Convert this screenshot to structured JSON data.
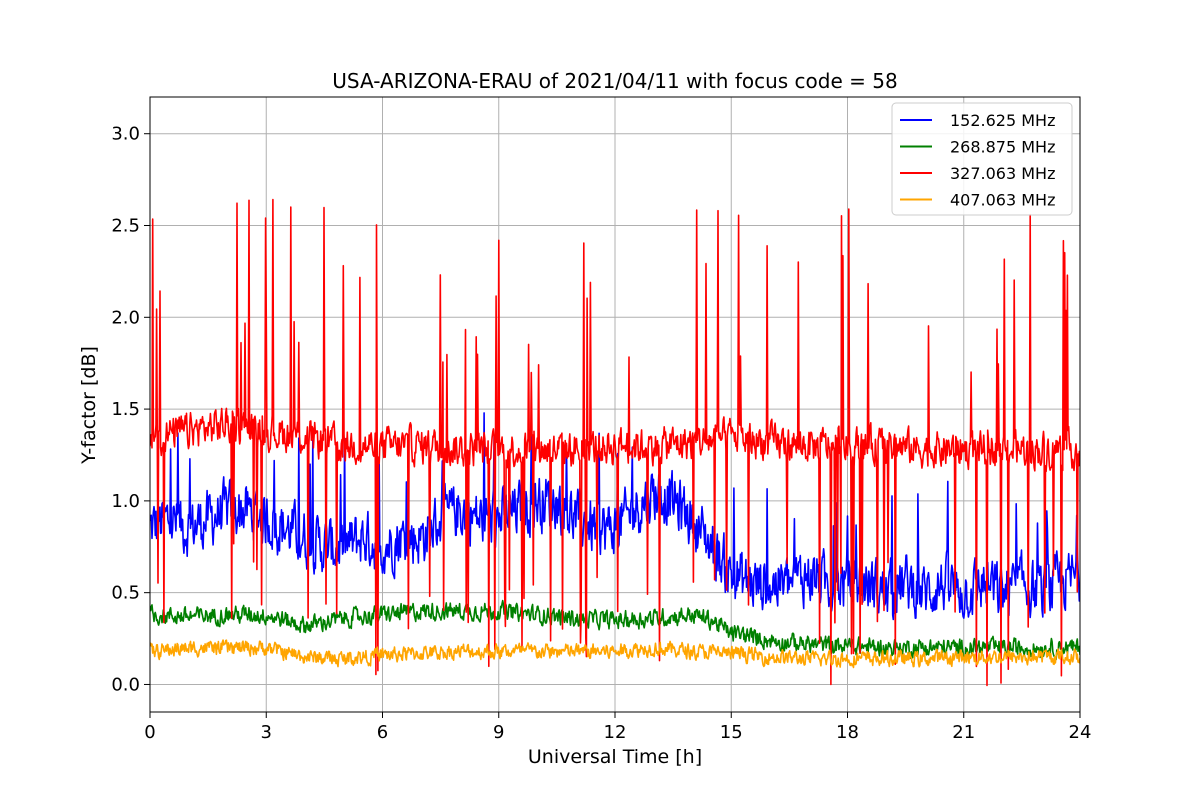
{
  "chart_data": {
    "type": "line",
    "title": "USA-ARIZONA-ERAU of 2021/04/11 with focus code = 58",
    "xlabel": "Universal Time [h]",
    "ylabel": "Y-factor [dB]",
    "xlim": [
      0,
      24
    ],
    "ylim": [
      -0.15,
      3.2
    ],
    "xticks": [
      0,
      3,
      6,
      9,
      12,
      15,
      18,
      21,
      24
    ],
    "yticks": [
      0.0,
      0.5,
      1.0,
      1.5,
      2.0,
      2.5,
      3.0
    ],
    "grid": true,
    "legend_position": "top-right",
    "series": [
      {
        "name": "152.625 MHz",
        "color": "#0000ff",
        "x": [
          0,
          0.5,
          1,
          1.5,
          2,
          2.5,
          3,
          3.5,
          4,
          4.5,
          5,
          5.5,
          6,
          6.5,
          7,
          7.5,
          8,
          8.5,
          9,
          9.5,
          10,
          10.5,
          11,
          11.5,
          12,
          12.5,
          13,
          13.5,
          14,
          14.5,
          15,
          15.5,
          16,
          16.5,
          17,
          17.5,
          18,
          18.5,
          19,
          19.5,
          20,
          20.5,
          21,
          21.5,
          22,
          22.5,
          23,
          23.5,
          24
        ],
        "y": [
          0.85,
          0.9,
          0.85,
          0.9,
          0.95,
          0.95,
          0.9,
          0.85,
          0.8,
          0.75,
          0.75,
          0.8,
          0.75,
          0.8,
          0.8,
          0.9,
          0.95,
          0.9,
          0.9,
          0.95,
          1.0,
          1.0,
          0.9,
          0.85,
          0.85,
          0.95,
          1.05,
          1.0,
          0.9,
          0.75,
          0.6,
          0.55,
          0.55,
          0.55,
          0.6,
          0.55,
          0.55,
          0.55,
          0.5,
          0.55,
          0.5,
          0.55,
          0.5,
          0.55,
          0.5,
          0.55,
          0.5,
          0.55,
          0.6
        ]
      },
      {
        "name": "268.875 MHz",
        "color": "#008000",
        "x": [
          0,
          1,
          2,
          3,
          4,
          5,
          6,
          7,
          8,
          9,
          10,
          11,
          12,
          13,
          14,
          14.5,
          15,
          16,
          17,
          18,
          19,
          20,
          21,
          22,
          23,
          24
        ],
        "y": [
          0.38,
          0.37,
          0.38,
          0.38,
          0.32,
          0.36,
          0.38,
          0.4,
          0.4,
          0.4,
          0.38,
          0.36,
          0.35,
          0.36,
          0.38,
          0.35,
          0.28,
          0.24,
          0.22,
          0.21,
          0.2,
          0.2,
          0.2,
          0.2,
          0.2,
          0.2
        ]
      },
      {
        "name": "327.063 MHz",
        "color": "#ff0000",
        "x": [
          0,
          1,
          2,
          3,
          4,
          5,
          6,
          7,
          8,
          9,
          10,
          11,
          12,
          13,
          14,
          15,
          16,
          17,
          18,
          19,
          20,
          21,
          22,
          23,
          24
        ],
        "y": [
          1.35,
          1.38,
          1.42,
          1.38,
          1.35,
          1.3,
          1.3,
          1.3,
          1.28,
          1.28,
          1.28,
          1.28,
          1.3,
          1.3,
          1.32,
          1.35,
          1.32,
          1.3,
          1.3,
          1.3,
          1.28,
          1.28,
          1.28,
          1.28,
          1.28
        ]
      },
      {
        "name": "407.063 MHz",
        "color": "#ffa500",
        "x": [
          0,
          1,
          2,
          3,
          4,
          5,
          6,
          7,
          8,
          9,
          10,
          11,
          12,
          13,
          14,
          15,
          16,
          17,
          18,
          19,
          20,
          21,
          22,
          23,
          24
        ],
        "y": [
          0.18,
          0.2,
          0.2,
          0.2,
          0.15,
          0.14,
          0.16,
          0.17,
          0.18,
          0.18,
          0.18,
          0.18,
          0.18,
          0.2,
          0.18,
          0.17,
          0.15,
          0.14,
          0.14,
          0.14,
          0.14,
          0.15,
          0.15,
          0.15,
          0.15
        ]
      }
    ]
  }
}
